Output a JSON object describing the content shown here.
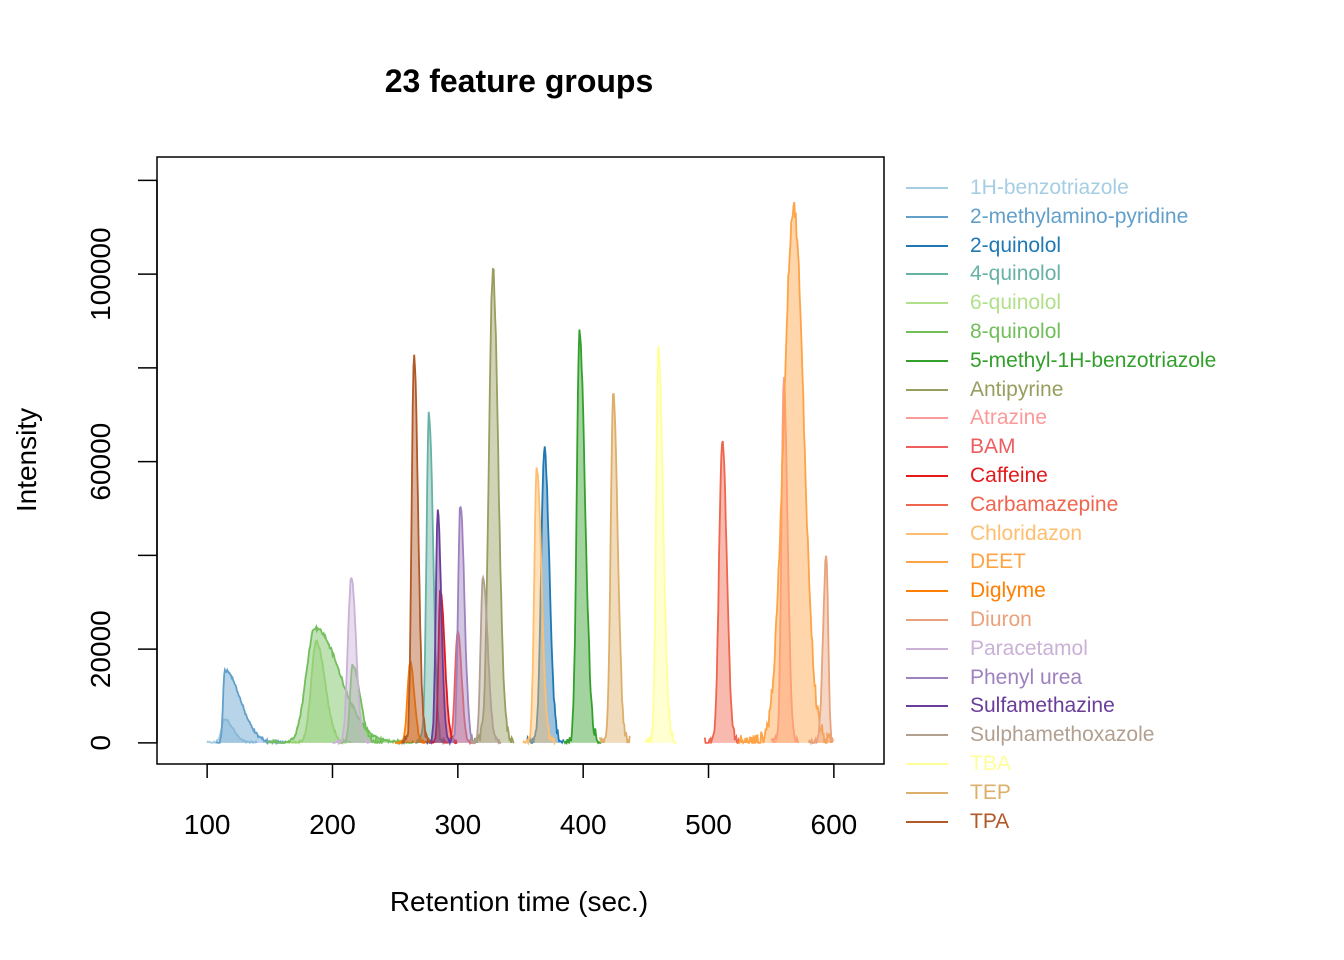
{
  "chart_data": {
    "type": "area",
    "title": "23 feature groups",
    "xlabel": "Retention time (sec.)",
    "ylabel": "Intensity",
    "xlim": [
      60,
      640
    ],
    "ylim": [
      -4500,
      125000
    ],
    "x_ticks": [
      100,
      200,
      300,
      400,
      500,
      600
    ],
    "y_ticks": [
      0,
      20000,
      60000,
      100000
    ],
    "y_tick_labels": [
      "0",
      "20000",
      "60000",
      "100000"
    ],
    "y_ticks_unlabeled": [
      40000,
      80000,
      120000
    ],
    "grid": false,
    "legend_placement": "right",
    "series": [
      {
        "name": "1H-benzotriazole",
        "color": "#A6CEE3",
        "peaks": [
          {
            "rt": 114,
            "height": 5000,
            "lo": 100,
            "hi": 140
          }
        ]
      },
      {
        "name": "2-methylamino-pyridine",
        "color": "#62A0CB",
        "peaks": [
          {
            "rt": 114,
            "height": 15500,
            "lo": 107,
            "hi": 163
          }
        ]
      },
      {
        "name": "2-quinolol",
        "color": "#1F78B4",
        "peaks": [
          {
            "rt": 369,
            "height": 63000,
            "lo": 355,
            "hi": 385
          }
        ]
      },
      {
        "name": "4-quinolol",
        "color": "#66B2A4",
        "peaks": [
          {
            "rt": 277,
            "height": 70000,
            "lo": 266,
            "hi": 290
          }
        ]
      },
      {
        "name": "6-quinolol",
        "color": "#B2DF8A",
        "peaks": [
          {
            "rt": 187,
            "height": 21500,
            "lo": 165,
            "hi": 215
          }
        ]
      },
      {
        "name": "8-quinolol",
        "color": "#72BE5A",
        "peaks": [
          {
            "rt": 186,
            "height": 24500,
            "lo": 148,
            "hi": 265
          },
          {
            "rt": 216,
            "height": 16500,
            "lo": 205,
            "hi": 240
          }
        ]
      },
      {
        "name": "5-methyl-1H-benzotriazole",
        "color": "#33A02C",
        "peaks": [
          {
            "rt": 397,
            "height": 87000,
            "lo": 385,
            "hi": 415
          }
        ]
      },
      {
        "name": "Antipyrine",
        "color": "#979E5E",
        "peaks": [
          {
            "rt": 328,
            "height": 100500,
            "lo": 310,
            "hi": 345
          }
        ]
      },
      {
        "name": "Atrazine",
        "color": "#FB9A99",
        "peaks": [
          {
            "rt": 560,
            "height": 77500,
            "lo": 550,
            "hi": 572
          }
        ]
      },
      {
        "name": "BAM",
        "color": "#EE5E5E",
        "peaks": [
          {
            "rt": 300,
            "height": 24000,
            "lo": 288,
            "hi": 312
          }
        ]
      },
      {
        "name": "Caffeine",
        "color": "#E31A1C",
        "peaks": [
          {
            "rt": 286,
            "height": 32500,
            "lo": 278,
            "hi": 300
          }
        ]
      },
      {
        "name": "Carbamazepine",
        "color": "#F0654E",
        "peaks": [
          {
            "rt": 511,
            "height": 65000,
            "lo": 497,
            "hi": 525
          }
        ]
      },
      {
        "name": "Chloridazon",
        "color": "#FDBF6F",
        "peaks": [
          {
            "rt": 363,
            "height": 59000,
            "lo": 352,
            "hi": 378
          }
        ]
      },
      {
        "name": "DEET",
        "color": "#FEA346",
        "peaks": [
          {
            "rt": 568,
            "height": 114000,
            "lo": 524,
            "hi": 600
          }
        ]
      },
      {
        "name": "Diglyme",
        "color": "#FF7F00",
        "peaks": [
          {
            "rt": 262,
            "height": 17000,
            "lo": 250,
            "hi": 275
          }
        ]
      },
      {
        "name": "Diuron",
        "color": "#E9A27B",
        "peaks": [
          {
            "rt": 594,
            "height": 40000,
            "lo": 580,
            "hi": 600
          }
        ]
      },
      {
        "name": "Paracetamol",
        "color": "#CAB2D6",
        "peaks": [
          {
            "rt": 215,
            "height": 35500,
            "lo": 200,
            "hi": 230
          }
        ]
      },
      {
        "name": "Phenyl urea",
        "color": "#9E81BF",
        "peaks": [
          {
            "rt": 302,
            "height": 51000,
            "lo": 292,
            "hi": 315
          }
        ]
      },
      {
        "name": "Sulfamethazine",
        "color": "#6A3D9A",
        "peaks": [
          {
            "rt": 284,
            "height": 49000,
            "lo": 275,
            "hi": 295
          }
        ]
      },
      {
        "name": "Sulphamethoxazole",
        "color": "#B19F90",
        "peaks": [
          {
            "rt": 320,
            "height": 35500,
            "lo": 310,
            "hi": 335
          }
        ]
      },
      {
        "name": "TBA",
        "color": "#FFFF99",
        "peaks": [
          {
            "rt": 460,
            "height": 84000,
            "lo": 450,
            "hi": 475
          }
        ]
      },
      {
        "name": "TEP",
        "color": "#DDAF6A",
        "peaks": [
          {
            "rt": 424,
            "height": 75000,
            "lo": 413,
            "hi": 438
          }
        ]
      },
      {
        "name": "TPA",
        "color": "#B15928",
        "peaks": [
          {
            "rt": 265,
            "height": 83000,
            "lo": 255,
            "hi": 278
          }
        ]
      }
    ]
  }
}
